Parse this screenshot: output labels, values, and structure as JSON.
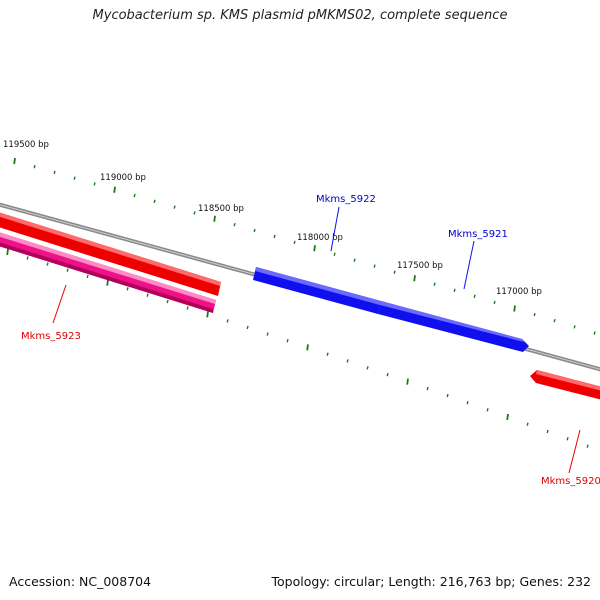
{
  "title": "Mycobacterium sp. KMS plasmid pMKMS02, complete sequence",
  "footer": {
    "accession": "Accession: NC_008704",
    "stats": "Topology: circular; Length: 216,763 bp; Genes: 232"
  },
  "colors": {
    "backbone": "#8a8a8a",
    "tick": "#1a7a1a",
    "forward_gene": "#1010ee",
    "reverse_gene": "#ee0000",
    "reverse_gene_alt": "#ee1188",
    "forward_label": "#0000cc",
    "reverse_label": "#dd0000"
  },
  "ticks": [
    {
      "label": "119500 bp"
    },
    {
      "label": "119000 bp"
    },
    {
      "label": "118500 bp"
    },
    {
      "label": "118000 bp"
    },
    {
      "label": "117500 bp"
    },
    {
      "label": "117000 bp"
    }
  ],
  "genes": [
    {
      "name": "Mkms_5922",
      "strand": "forward"
    },
    {
      "name": "Mkms_5921",
      "strand": "forward"
    },
    {
      "name": "Mkms_5923",
      "strand": "reverse"
    },
    {
      "name": "Mkms_5920",
      "strand": "reverse"
    }
  ]
}
